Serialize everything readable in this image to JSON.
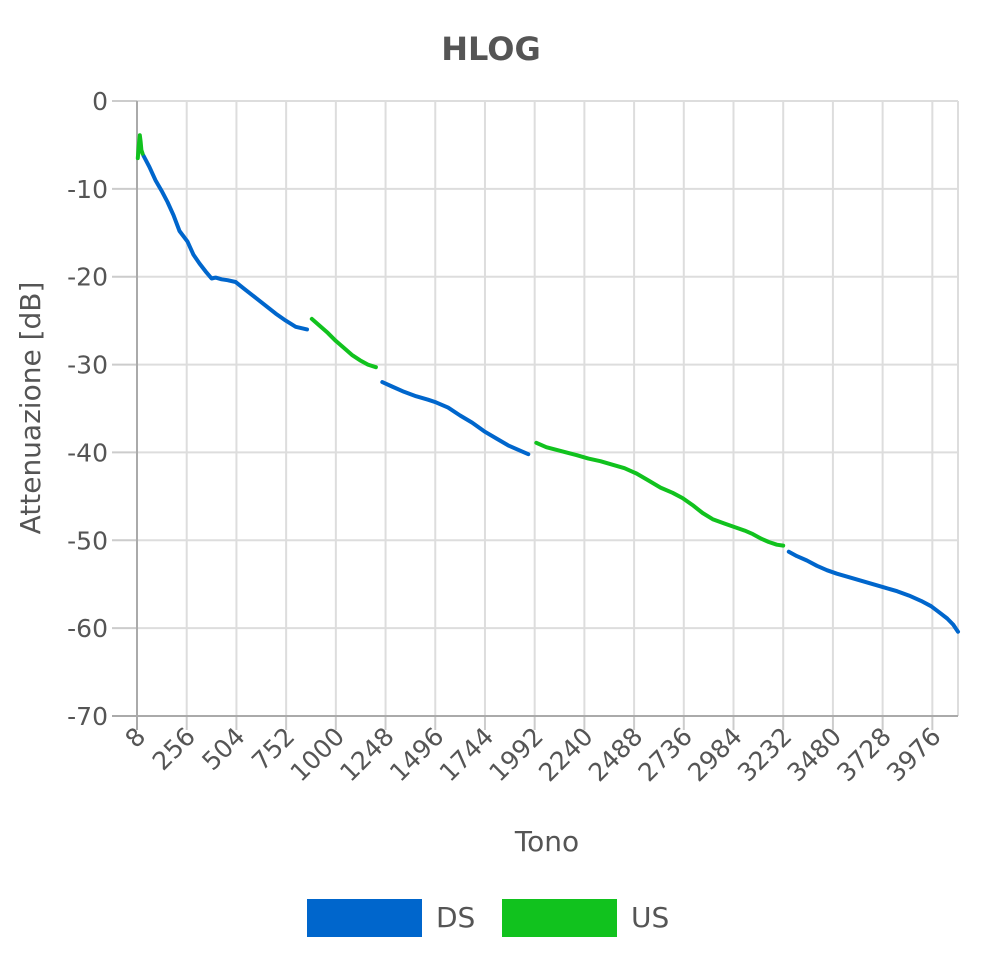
{
  "chart_data": {
    "type": "line",
    "title": "HLOG",
    "xlabel": "Tono",
    "ylabel": "Attenuazione [dB]",
    "xlim": [
      8,
      4104
    ],
    "ylim": [
      -70,
      0
    ],
    "x_ticks": [
      "8",
      "256",
      "504",
      "752",
      "1000",
      "1248",
      "1496",
      "1744",
      "1992",
      "2240",
      "2488",
      "2736",
      "2984",
      "3232",
      "3480",
      "3728",
      "3976"
    ],
    "y_ticks": [
      "0",
      "-10",
      "-20",
      "-30",
      "-40",
      "-50",
      "-60",
      "-70"
    ],
    "grid": true,
    "legend_position": "bottom-center",
    "colors": {
      "DS": "#0066cc",
      "US": "#11c21e"
    },
    "series": [
      {
        "name": "DS",
        "segments": [
          {
            "x": [
              40,
              70,
              100,
              130,
              160,
              190,
              220,
              260,
              290,
              320,
              350,
              380,
              400,
              430,
              460,
              500,
              550,
              600,
              650,
              700,
              750,
              800,
              856
            ],
            "y": [
              -6.2,
              -7.5,
              -9.0,
              -10.2,
              -11.5,
              -13.0,
              -14.8,
              -16.0,
              -17.5,
              -18.5,
              -19.4,
              -20.2,
              -20.1,
              -20.3,
              -20.4,
              -20.6,
              -21.5,
              -22.4,
              -23.3,
              -24.2,
              -25.0,
              -25.7,
              -26.0
            ]
          },
          {
            "x": [
              1232,
              1280,
              1340,
              1400,
              1460,
              1500,
              1560,
              1620,
              1680,
              1740,
              1800,
              1860,
              1920,
              1960
            ],
            "y": [
              -32.0,
              -32.5,
              -33.1,
              -33.6,
              -34.0,
              -34.3,
              -34.9,
              -35.8,
              -36.6,
              -37.6,
              -38.4,
              -39.2,
              -39.8,
              -40.2
            ]
          },
          {
            "x": [
              3260,
              3300,
              3350,
              3400,
              3450,
              3500,
              3560,
              3620,
              3680,
              3740,
              3800,
              3860,
              3920,
              3970,
              4010,
              4050,
              4080,
              4104
            ],
            "y": [
              -51.3,
              -51.8,
              -52.3,
              -52.9,
              -53.4,
              -53.8,
              -54.2,
              -54.6,
              -55.0,
              -55.4,
              -55.8,
              -56.3,
              -56.9,
              -57.5,
              -58.2,
              -58.9,
              -59.6,
              -60.4
            ]
          }
        ]
      },
      {
        "name": "US",
        "segments": [
          {
            "x": [
              12,
              18,
              22,
              26,
              30,
              36
            ],
            "y": [
              -6.5,
              -4.8,
              -3.9,
              -4.6,
              -5.6,
              -6.0
            ]
          },
          {
            "x": [
              880,
              920,
              960,
              1000,
              1040,
              1080,
              1120,
              1160,
              1200
            ],
            "y": [
              -24.8,
              -25.6,
              -26.4,
              -27.3,
              -28.1,
              -28.9,
              -29.5,
              -30.0,
              -30.3
            ]
          },
          {
            "x": [
              2000,
              2050,
              2100,
              2150,
              2200,
              2260,
              2320,
              2380,
              2440,
              2500,
              2560,
              2620,
              2680,
              2730,
              2780,
              2830,
              2880,
              2940,
              2990,
              3040,
              3080,
              3120,
              3160,
              3200,
              3232
            ],
            "y": [
              -38.9,
              -39.4,
              -39.7,
              -40.0,
              -40.3,
              -40.7,
              -41.0,
              -41.4,
              -41.8,
              -42.4,
              -43.2,
              -44.0,
              -44.6,
              -45.2,
              -46.0,
              -46.9,
              -47.6,
              -48.1,
              -48.5,
              -48.9,
              -49.3,
              -49.8,
              -50.2,
              -50.5,
              -50.6
            ]
          }
        ]
      }
    ]
  }
}
